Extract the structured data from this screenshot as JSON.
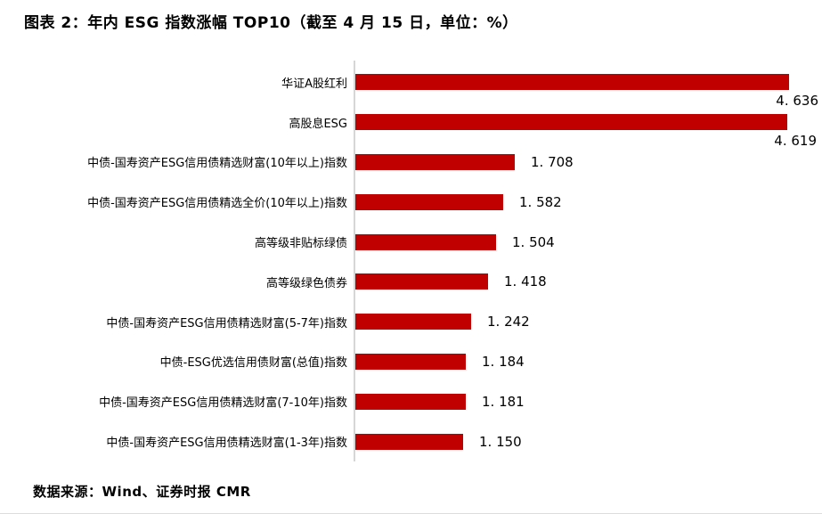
{
  "title": "图表 2：年内 ESG 指数涨幅 TOP10（截至 4 月 15 日，单位：%）",
  "source": "数据来源：Wind、证券时报 CMR",
  "chart_data": {
    "type": "bar",
    "orientation": "horizontal",
    "title": "年内 ESG 指数涨幅 TOP10（截至 4 月 15 日，单位：%）",
    "unit": "%",
    "xlim": [
      0,
      5
    ],
    "grid": false,
    "legend": false,
    "bar_color": "#c00000",
    "axis_line_color": "#d6d6d6",
    "categories": [
      "华证A股红利",
      "高股息ESG",
      "中债-国寿资产ESG信用债精选财富(10年以上)指数",
      "中债-国寿资产ESG信用债精选全价(10年以上)指数",
      "高等级非贴标绿债",
      "高等级绿色债券",
      "中债-国寿资产ESG信用债精选财富(5-7年)指数",
      "中债-ESG优选信用债财富(总值)指数",
      "中债-国寿资产ESG信用债精选财富(7-10年)指数",
      "中债-国寿资产ESG信用债精选财富(1-3年)指数"
    ],
    "values": [
      4.636,
      4.619,
      1.708,
      1.582,
      1.504,
      1.418,
      1.242,
      1.184,
      1.181,
      1.15
    ],
    "value_labels": [
      "4. 636",
      "4. 619",
      "1. 708",
      "1. 582",
      "1. 504",
      "1. 418",
      "1. 242",
      "1. 184",
      "1. 181",
      "1. 150"
    ]
  }
}
